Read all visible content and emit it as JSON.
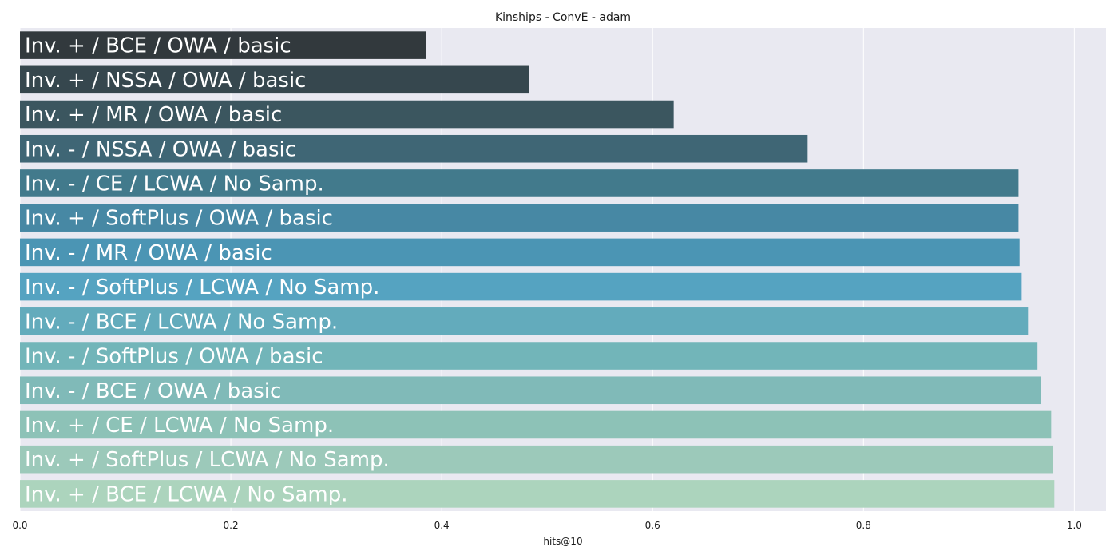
{
  "chart_data": {
    "type": "bar",
    "orientation": "horizontal",
    "title": "Kinships - ConvE - adam",
    "xlabel": "hits@10",
    "ylabel": "",
    "xlim": [
      0.0,
      1.03
    ],
    "xticks": [
      0.0,
      0.2,
      0.4,
      0.6,
      0.8,
      1.0
    ],
    "xtick_labels": [
      "0.0",
      "0.2",
      "0.4",
      "0.6",
      "0.8",
      "1.0"
    ],
    "grid": true,
    "bar_labels_inside": true,
    "categories": [
      "Inv. + / BCE / OWA / basic",
      "Inv. + / NSSA / OWA / basic",
      "Inv. + / MR / OWA / basic",
      "Inv. - / NSSA / OWA / basic",
      "Inv. - / CE / LCWA / No Samp.",
      "Inv. + / SoftPlus / OWA / basic",
      "Inv. - / MR / OWA / basic",
      "Inv. - / SoftPlus / LCWA / No Samp.",
      "Inv. - / BCE / LCWA / No Samp.",
      "Inv. - / SoftPlus / OWA / basic",
      "Inv. - / BCE / OWA / basic",
      "Inv. + / CE / LCWA / No Samp.",
      "Inv. + / SoftPlus / LCWA / No Samp.",
      "Inv. + / BCE / LCWA / No Samp."
    ],
    "values": [
      0.385,
      0.483,
      0.62,
      0.747,
      0.947,
      0.947,
      0.948,
      0.95,
      0.956,
      0.965,
      0.968,
      0.978,
      0.98,
      0.981
    ],
    "colors": [
      "#32393d",
      "#36474e",
      "#3b565f",
      "#3f6675",
      "#427a8c",
      "#4788a4",
      "#4b95b4",
      "#55a3c1",
      "#63abbc",
      "#72b5b9",
      "#80bab8",
      "#8dc2b7",
      "#9cc9ba",
      "#acd4bd"
    ],
    "background": "#e9e9f1",
    "gridline_color": "#ffffff"
  }
}
